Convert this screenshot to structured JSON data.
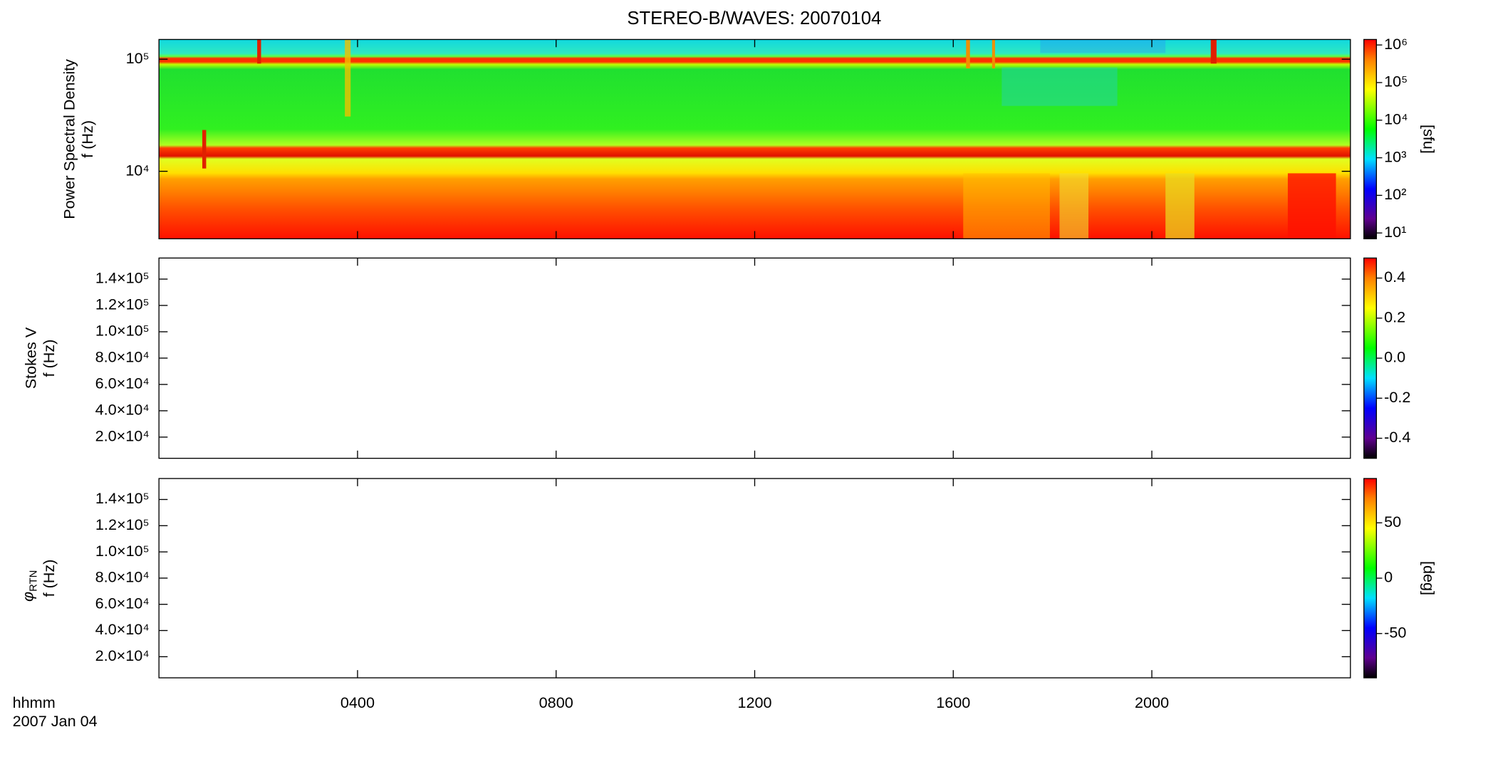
{
  "chart_data": [
    {
      "type": "heatmap",
      "title": "STEREO-B/WAVES: 20070104",
      "ylabel": "Power Spectral Density",
      "ylabel2": "f (Hz)",
      "ylog": true,
      "ylim": [
        2500,
        150000
      ],
      "yticks": [
        {
          "value": 10000,
          "label": "10⁴"
        },
        {
          "value": 100000,
          "label": "10⁵"
        }
      ],
      "colorbar": {
        "label": "[sfu]",
        "log": true,
        "lim": [
          7,
          1400000
        ],
        "ticks": [
          {
            "value": 10,
            "label": "10¹"
          },
          {
            "value": 100,
            "label": "10²"
          },
          {
            "value": 1000,
            "label": "10³"
          },
          {
            "value": 10000,
            "label": "10⁴"
          },
          {
            "value": 100000,
            "label": "10⁵"
          },
          {
            "value": 1000000,
            "label": "10⁶"
          }
        ]
      }
    },
    {
      "type": "heatmap",
      "ylabel": "Stokes V",
      "ylabel2": "f (Hz)",
      "ylog": false,
      "ylim": [
        3900,
        156000
      ],
      "yticks": [
        {
          "value": 20000,
          "label": "2.0×10⁴"
        },
        {
          "value": 40000,
          "label": "4.0×10⁴"
        },
        {
          "value": 60000,
          "label": "6.0×10⁴"
        },
        {
          "value": 80000,
          "label": "8.0×10⁴"
        },
        {
          "value": 100000,
          "label": "1.0×10⁵"
        },
        {
          "value": 120000,
          "label": "1.2×10⁵"
        },
        {
          "value": 140000,
          "label": "1.4×10⁵"
        }
      ],
      "colorbar": {
        "log": false,
        "lim": [
          -0.5,
          0.5
        ],
        "ticks": [
          -0.4,
          -0.2,
          {
            "value": 0,
            "label": "0.0"
          },
          0.2,
          0.4
        ]
      }
    },
    {
      "type": "heatmap",
      "ylabel": {
        "symbol": "φ",
        "subscript": "RTN"
      },
      "ylabel2": "f (Hz)",
      "ylog": false,
      "ylim": [
        3900,
        156000
      ],
      "yticks": [
        {
          "value": 20000,
          "label": "2.0×10⁴"
        },
        {
          "value": 40000,
          "label": "4.0×10⁴"
        },
        {
          "value": 60000,
          "label": "6.0×10⁴"
        },
        {
          "value": 80000,
          "label": "8.0×10⁴"
        },
        {
          "value": 100000,
          "label": "1.0×10⁵"
        },
        {
          "value": 120000,
          "label": "1.2×10⁵"
        },
        {
          "value": 140000,
          "label": "1.4×10⁵"
        }
      ],
      "colorbar": {
        "label": "[deg]",
        "log": false,
        "lim": [
          -90,
          90
        ],
        "ticks": [
          -50,
          0,
          50
        ]
      },
      "xlim": [
        0,
        24
      ],
      "xticks": [
        {
          "value": 4,
          "label": "0400"
        },
        {
          "value": 8,
          "label": "0800"
        },
        {
          "value": 12,
          "label": "1200"
        },
        {
          "value": 16,
          "label": "1600"
        },
        {
          "value": 20,
          "label": "2000"
        }
      ],
      "xlabel": "hhmm",
      "date": "2007 Jan 04"
    }
  ]
}
